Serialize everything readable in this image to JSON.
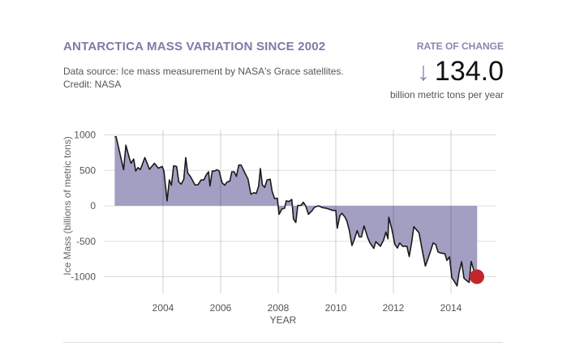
{
  "header": {
    "title": "ANTARCTICA MASS VARIATION SINCE 2002",
    "source": "Data source: Ice mass measurement by NASA's Grace satellites.",
    "credit": "Credit: NASA"
  },
  "rate": {
    "label": "RATE OF CHANGE",
    "icon": "arrow-down-icon",
    "value": "134.0",
    "unit": "billion metric tons per year"
  },
  "chart_data": {
    "type": "area",
    "xlabel": "YEAR",
    "ylabel": "Ice Mass (billions of metric tons)",
    "xlim": [
      2002.3,
      2015.0
    ],
    "ylim": [
      -1150,
      1000
    ],
    "xticks": [
      2004,
      2006,
      2008,
      2010,
      2012,
      2014
    ],
    "yticks": [
      1000,
      500,
      0,
      -500,
      -1000
    ],
    "grid": true,
    "fill_color": "#a39fc2",
    "line_color": "#1a1a1a",
    "marker": {
      "x": 2014.9,
      "y": -1000,
      "color": "#c1272d"
    },
    "x": [
      2002.32,
      2002.37,
      2002.63,
      2002.71,
      2002.84,
      2002.89,
      2002.98,
      2003.05,
      2003.13,
      2003.21,
      2003.37,
      2003.53,
      2003.7,
      2003.84,
      2003.97,
      2004.03,
      2004.14,
      2004.22,
      2004.29,
      2004.37,
      2004.47,
      2004.55,
      2004.63,
      2004.72,
      2004.79,
      2004.86,
      2004.95,
      2005.11,
      2005.21,
      2005.32,
      2005.42,
      2005.49,
      2005.58,
      2005.63,
      2005.71,
      2005.79,
      2005.87,
      2005.95,
      2006.05,
      2006.14,
      2006.22,
      2006.32,
      2006.39,
      2006.47,
      2006.55,
      2006.63,
      2006.71,
      2006.81,
      2006.95,
      2007.05,
      2007.16,
      2007.24,
      2007.32,
      2007.38,
      2007.45,
      2007.53,
      2007.61,
      2007.72,
      2007.79,
      2007.87,
      2007.97,
      2008.03,
      2008.13,
      2008.22,
      2008.28,
      2008.37,
      2008.47,
      2008.53,
      2008.61,
      2008.68,
      2008.79,
      2008.87,
      2008.95,
      2009.05,
      2009.16,
      2009.26,
      2009.4,
      2009.53,
      2009.68,
      2009.79,
      2009.89,
      2010.0,
      2010.05,
      2010.14,
      2010.21,
      2010.32,
      2010.39,
      2010.47,
      2010.56,
      2010.64,
      2010.74,
      2010.82,
      2010.89,
      2010.98,
      2011.11,
      2011.19,
      2011.32,
      2011.39,
      2011.55,
      2011.66,
      2011.74,
      2011.81,
      2011.84,
      2011.95,
      2012.05,
      2012.14,
      2012.22,
      2012.32,
      2012.47,
      2012.55,
      2012.63,
      2012.71,
      2012.89,
      2013.0,
      2013.11,
      2013.21,
      2013.29,
      2013.38,
      2013.47,
      2013.55,
      2013.63,
      2013.79,
      2013.86,
      2013.95,
      2014.03,
      2014.11,
      2014.21,
      2014.28,
      2014.37,
      2014.45,
      2014.56,
      2014.63,
      2014.7,
      2014.79,
      2014.87
    ],
    "y": [
      975,
      975,
      510,
      855,
      660,
      600,
      660,
      490,
      540,
      510,
      680,
      515,
      600,
      530,
      555,
      490,
      70,
      365,
      290,
      565,
      555,
      335,
      305,
      375,
      680,
      460,
      415,
      295,
      295,
      365,
      365,
      430,
      480,
      280,
      490,
      490,
      510,
      490,
      325,
      290,
      335,
      350,
      480,
      480,
      415,
      575,
      575,
      490,
      380,
      165,
      185,
      175,
      280,
      525,
      295,
      260,
      365,
      375,
      205,
      105,
      105,
      -120,
      -45,
      -35,
      70,
      60,
      90,
      -185,
      -235,
      5,
      5,
      50,
      5,
      -120,
      -75,
      -20,
      0,
      -25,
      -35,
      -50,
      -65,
      -65,
      -315,
      -140,
      -105,
      -160,
      -220,
      -350,
      -560,
      -480,
      -350,
      -440,
      -440,
      -285,
      -450,
      -525,
      -600,
      -505,
      -570,
      -485,
      -370,
      -465,
      -160,
      -335,
      -545,
      -595,
      -525,
      -570,
      -570,
      -715,
      -525,
      -295,
      -380,
      -620,
      -850,
      -735,
      -640,
      -525,
      -545,
      -650,
      -665,
      -675,
      -770,
      -720,
      -1015,
      -1060,
      -1130,
      -945,
      -790,
      -1020,
      -1060,
      -1080,
      -785,
      -905,
      -1020
    ]
  }
}
